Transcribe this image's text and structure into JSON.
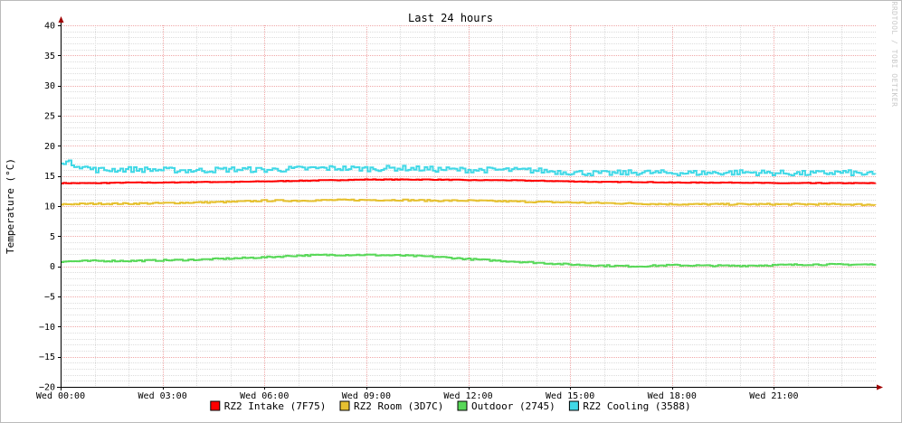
{
  "chart_data": {
    "type": "line",
    "title": "Last 24 hours",
    "ylabel": "Temperature (°C)",
    "watermark": "RRDTOOL / TOBI OETIKER",
    "ylim": [
      -20,
      40
    ],
    "yticks": [
      {
        "value": 40,
        "label": "40"
      },
      {
        "value": 35,
        "label": "35"
      },
      {
        "value": 30,
        "label": "30"
      },
      {
        "value": 25,
        "label": "25"
      },
      {
        "value": 20,
        "label": "20"
      },
      {
        "value": 15,
        "label": "15"
      },
      {
        "value": 10,
        "label": "10"
      },
      {
        "value": 5,
        "label": "5"
      },
      {
        "value": 0,
        "label": "0"
      },
      {
        "value": -5,
        "label": "−5"
      },
      {
        "value": -10,
        "label": "−10"
      },
      {
        "value": -15,
        "label": "−15"
      },
      {
        "value": -20,
        "label": "−20"
      }
    ],
    "xlim": [
      "Wed 00:00",
      "Wed 23:59"
    ],
    "xticks": [
      "Wed 00:00",
      "Wed 03:00",
      "Wed 06:00",
      "Wed 09:00",
      "Wed 12:00",
      "Wed 15:00",
      "Wed 18:00",
      "Wed 21:00"
    ],
    "grid": true,
    "legend": "bottom",
    "x": [
      "Wed 00:00",
      "Wed 01:00",
      "Wed 02:00",
      "Wed 03:00",
      "Wed 04:00",
      "Wed 05:00",
      "Wed 06:00",
      "Wed 07:00",
      "Wed 08:00",
      "Wed 09:00",
      "Wed 10:00",
      "Wed 11:00",
      "Wed 12:00",
      "Wed 13:00",
      "Wed 14:00",
      "Wed 15:00",
      "Wed 16:00",
      "Wed 17:00",
      "Wed 18:00",
      "Wed 19:00",
      "Wed 20:00",
      "Wed 21:00",
      "Wed 22:00",
      "Wed 23:00",
      "Wed 23:59"
    ],
    "series": [
      {
        "name": "RZ2 Intake (7F75)",
        "color": "#ff0000",
        "values": [
          13.8,
          13.8,
          13.9,
          13.9,
          14.0,
          14.0,
          14.1,
          14.2,
          14.3,
          14.4,
          14.4,
          14.4,
          14.3,
          14.3,
          14.2,
          14.1,
          14.0,
          14.0,
          13.9,
          13.9,
          13.9,
          13.8,
          13.8,
          13.8,
          13.8
        ]
      },
      {
        "name": "RZ2 Room (3D7C)",
        "color": "#e6c030",
        "values": [
          10.3,
          10.4,
          10.4,
          10.5,
          10.6,
          10.7,
          10.9,
          10.9,
          11.0,
          11.0,
          11.0,
          10.9,
          10.9,
          10.8,
          10.7,
          10.6,
          10.5,
          10.4,
          10.3,
          10.3,
          10.3,
          10.3,
          10.3,
          10.3,
          10.2
        ]
      },
      {
        "name": "Outdoor (2745)",
        "color": "#58d858",
        "values": [
          0.8,
          0.9,
          0.9,
          1.0,
          1.1,
          1.3,
          1.5,
          1.8,
          1.9,
          1.9,
          1.8,
          1.6,
          1.2,
          0.9,
          0.6,
          0.3,
          0.1,
          0.0,
          0.2,
          0.1,
          0.1,
          0.2,
          0.3,
          0.3,
          0.3
        ]
      },
      {
        "name": "RZ2 Cooling (3588)",
        "color": "#40d8e6",
        "values": [
          17.5,
          16.0,
          16.1,
          16.0,
          15.9,
          16.1,
          16.0,
          16.2,
          16.3,
          16.2,
          16.3,
          16.1,
          16.0,
          16.0,
          15.9,
          15.6,
          15.4,
          15.6,
          15.5,
          15.5,
          15.6,
          15.5,
          15.4,
          15.6,
          15.2
        ]
      }
    ]
  }
}
